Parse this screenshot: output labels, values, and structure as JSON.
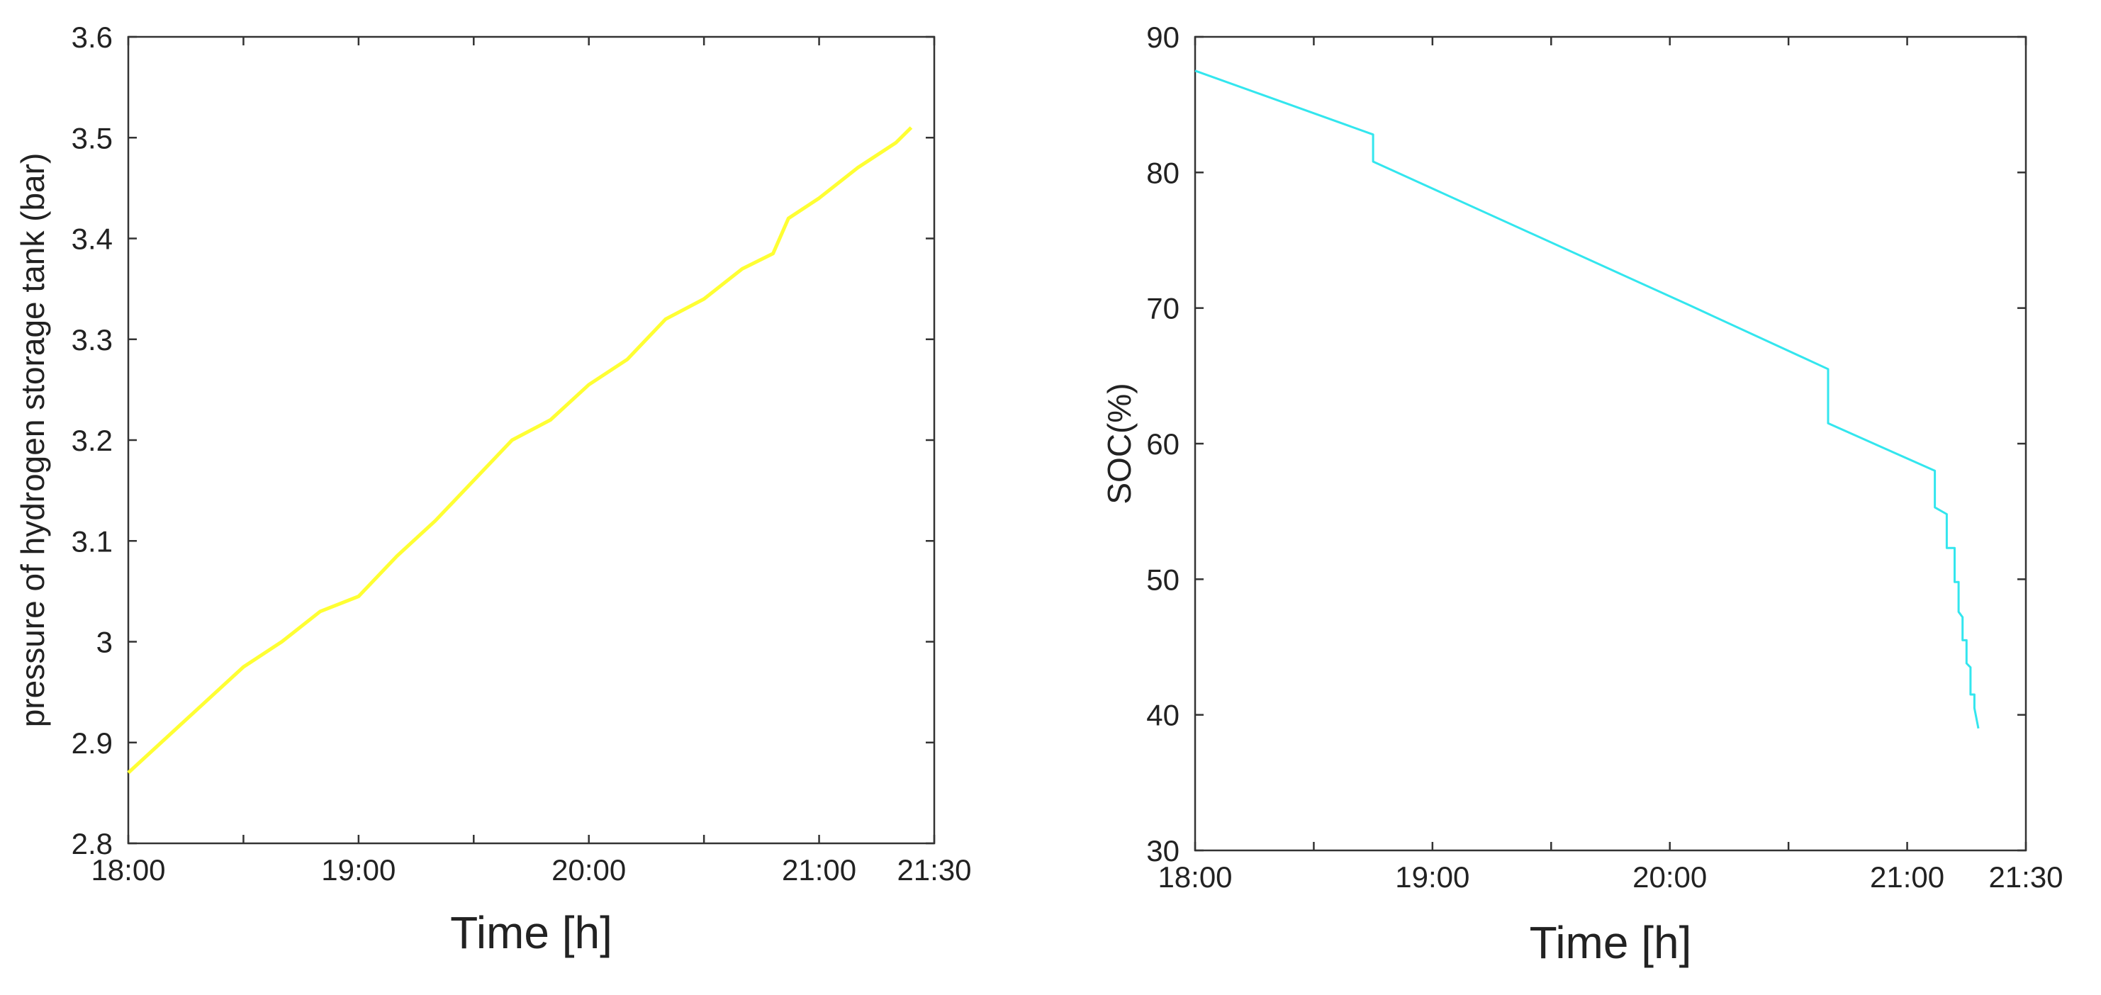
{
  "chart_data": [
    {
      "type": "line",
      "title": "",
      "xlabel": "Time [h]",
      "ylabel": "pressure of hydrogen storage tank (bar)",
      "xlim": [
        "18:00",
        "21:30"
      ],
      "ylim": [
        2.8,
        3.6
      ],
      "xtick_labels": [
        "18:00",
        "19:00",
        "20:00",
        "21:00",
        "21:30"
      ],
      "ytick_labels": [
        "2.8",
        "2.9",
        "3",
        "3.1",
        "3.2",
        "3.3",
        "3.4",
        "3.5",
        "3.6"
      ],
      "grid": false,
      "series": [
        {
          "color": "#ffff33",
          "x": [
            "18:00",
            "18:10",
            "18:20",
            "18:30",
            "18:40",
            "18:50",
            "19:00",
            "19:10",
            "19:20",
            "19:30",
            "19:40",
            "19:50",
            "20:00",
            "20:10",
            "20:20",
            "20:30",
            "20:40",
            "20:48",
            "20:52",
            "21:00",
            "21:10",
            "21:20",
            "21:24"
          ],
          "y": [
            2.87,
            2.905,
            2.94,
            2.975,
            3.0,
            3.03,
            3.045,
            3.085,
            3.12,
            3.16,
            3.2,
            3.22,
            3.255,
            3.28,
            3.32,
            3.34,
            3.37,
            3.385,
            3.42,
            3.44,
            3.47,
            3.495,
            3.51
          ]
        }
      ]
    },
    {
      "type": "line",
      "title": "",
      "xlabel": "Time [h]",
      "ylabel": "SOC(%)",
      "xlim": [
        "18:00",
        "21:30"
      ],
      "ylim": [
        30,
        90
      ],
      "xtick_labels": [
        "18:00",
        "19:00",
        "20:00",
        "21:00",
        "21:30"
      ],
      "ytick_labels": [
        "30",
        "40",
        "50",
        "60",
        "70",
        "80",
        "90"
      ],
      "grid": false,
      "series": [
        {
          "color": "#33e6ee",
          "x": [
            "18:00",
            "18:45",
            "18:45",
            "20:05",
            "20:40",
            "20:40",
            "21:07",
            "21:07",
            "21:10",
            "21:10",
            "21:12",
            "21:12",
            "21:13",
            "21:13",
            "21:14",
            "21:14",
            "21:15",
            "21:15",
            "21:16",
            "21:16",
            "21:17",
            "21:17",
            "21:18"
          ],
          "y": [
            87.5,
            82.8,
            80.8,
            70.2,
            65.5,
            61.5,
            58.0,
            55.3,
            54.8,
            52.3,
            52.3,
            49.8,
            49.8,
            47.6,
            47.2,
            45.5,
            45.5,
            43.8,
            43.5,
            41.5,
            41.5,
            40.5,
            39.0
          ]
        }
      ]
    }
  ]
}
